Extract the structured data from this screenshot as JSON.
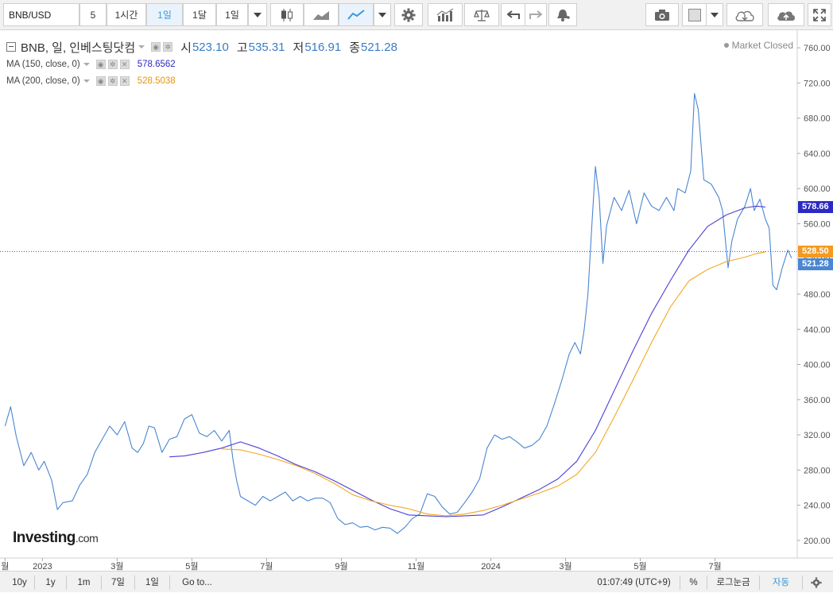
{
  "toolbar": {
    "symbol": "BNB/USD",
    "interval_buttons": [
      "5",
      "1시간",
      "1일",
      "1달",
      "1일"
    ],
    "active_interval": "1일"
  },
  "legend": {
    "title": "BNB, 일, 인베스팅닷컴",
    "open_label": "시",
    "open": "523.10",
    "high_label": "고",
    "high": "535.31",
    "low_label": "저",
    "low": "516.91",
    "close_label": "종",
    "close": "521.28",
    "ma150_label": "MA (150, close, 0)",
    "ma150_value": "578.6562",
    "ma200_label": "MA (200, close, 0)",
    "ma200_value": "528.5038",
    "market_status": "Market Closed"
  },
  "colors": {
    "price": "#4a86d1",
    "ma150": "#4b3fd6",
    "ma200": "#f5a623",
    "close_tag": "#4a86d1",
    "ma150_tag": "#2b28c4",
    "ma200_tag": "#f59a1f",
    "axis_text": "#555555"
  },
  "price_tags": {
    "ma150": "578.66",
    "ma200": "528.50",
    "close": "521.28"
  },
  "logo": {
    "main": "Investing",
    "suffix": ".com"
  },
  "chart_data": {
    "type": "line",
    "y_ticks": [
      200,
      240,
      280,
      320,
      360,
      400,
      440,
      480,
      520,
      560,
      600,
      640,
      680,
      720,
      760
    ],
    "ylim": [
      180,
      780
    ],
    "x_labels": [
      {
        "label": "월",
        "t": 0
      },
      {
        "label": "2023",
        "t": 1
      },
      {
        "label": "3월",
        "t": 3
      },
      {
        "label": "5월",
        "t": 5
      },
      {
        "label": "7월",
        "t": 7
      },
      {
        "label": "9월",
        "t": 9
      },
      {
        "label": "11월",
        "t": 11
      },
      {
        "label": "2024",
        "t": 13
      },
      {
        "label": "3월",
        "t": 15
      },
      {
        "label": "5월",
        "t": 17
      },
      {
        "label": "7월",
        "t": 19
      }
    ],
    "series": [
      {
        "key": "price",
        "values": [
          [
            0.0,
            330
          ],
          [
            0.15,
            352
          ],
          [
            0.3,
            318
          ],
          [
            0.5,
            285
          ],
          [
            0.7,
            300
          ],
          [
            0.9,
            280
          ],
          [
            1.05,
            290
          ],
          [
            1.25,
            268
          ],
          [
            1.4,
            235
          ],
          [
            1.55,
            243
          ],
          [
            1.8,
            245
          ],
          [
            2.0,
            263
          ],
          [
            2.2,
            275
          ],
          [
            2.4,
            300
          ],
          [
            2.6,
            315
          ],
          [
            2.8,
            330
          ],
          [
            3.0,
            320
          ],
          [
            3.2,
            335
          ],
          [
            3.4,
            305
          ],
          [
            3.55,
            300
          ],
          [
            3.7,
            310
          ],
          [
            3.85,
            330
          ],
          [
            4.0,
            328
          ],
          [
            4.2,
            300
          ],
          [
            4.4,
            315
          ],
          [
            4.6,
            318
          ],
          [
            4.8,
            338
          ],
          [
            5.0,
            343
          ],
          [
            5.2,
            322
          ],
          [
            5.4,
            318
          ],
          [
            5.6,
            325
          ],
          [
            5.8,
            313
          ],
          [
            6.0,
            325
          ],
          [
            6.1,
            292
          ],
          [
            6.2,
            268
          ],
          [
            6.3,
            250
          ],
          [
            6.5,
            245
          ],
          [
            6.7,
            240
          ],
          [
            6.9,
            250
          ],
          [
            7.1,
            245
          ],
          [
            7.3,
            250
          ],
          [
            7.5,
            255
          ],
          [
            7.7,
            245
          ],
          [
            7.9,
            250
          ],
          [
            8.1,
            245
          ],
          [
            8.3,
            248
          ],
          [
            8.5,
            248
          ],
          [
            8.7,
            243
          ],
          [
            8.9,
            225
          ],
          [
            9.1,
            218
          ],
          [
            9.3,
            220
          ],
          [
            9.5,
            215
          ],
          [
            9.7,
            216
          ],
          [
            9.9,
            212
          ],
          [
            10.1,
            215
          ],
          [
            10.3,
            214
          ],
          [
            10.5,
            208
          ],
          [
            10.7,
            215
          ],
          [
            10.9,
            225
          ],
          [
            11.1,
            230
          ],
          [
            11.3,
            253
          ],
          [
            11.5,
            250
          ],
          [
            11.7,
            238
          ],
          [
            11.9,
            230
          ],
          [
            12.1,
            232
          ],
          [
            12.3,
            243
          ],
          [
            12.5,
            255
          ],
          [
            12.7,
            270
          ],
          [
            12.9,
            305
          ],
          [
            13.1,
            320
          ],
          [
            13.3,
            315
          ],
          [
            13.5,
            318
          ],
          [
            13.7,
            312
          ],
          [
            13.9,
            305
          ],
          [
            14.1,
            308
          ],
          [
            14.3,
            315
          ],
          [
            14.5,
            330
          ],
          [
            14.7,
            355
          ],
          [
            14.9,
            382
          ],
          [
            15.1,
            412
          ],
          [
            15.25,
            425
          ],
          [
            15.4,
            412
          ],
          [
            15.5,
            440
          ],
          [
            15.6,
            480
          ],
          [
            15.7,
            555
          ],
          [
            15.8,
            625
          ],
          [
            15.9,
            590
          ],
          [
            16.0,
            515
          ],
          [
            16.1,
            558
          ],
          [
            16.3,
            590
          ],
          [
            16.5,
            575
          ],
          [
            16.7,
            598
          ],
          [
            16.9,
            560
          ],
          [
            17.1,
            595
          ],
          [
            17.3,
            580
          ],
          [
            17.5,
            575
          ],
          [
            17.7,
            590
          ],
          [
            17.9,
            575
          ],
          [
            18.0,
            600
          ],
          [
            18.2,
            595
          ],
          [
            18.35,
            620
          ],
          [
            18.45,
            708
          ],
          [
            18.55,
            690
          ],
          [
            18.7,
            610
          ],
          [
            18.9,
            605
          ],
          [
            19.1,
            590
          ],
          [
            19.2,
            575
          ],
          [
            19.35,
            510
          ],
          [
            19.45,
            540
          ],
          [
            19.6,
            565
          ],
          [
            19.8,
            580
          ],
          [
            19.95,
            600
          ],
          [
            20.05,
            575
          ],
          [
            20.2,
            588
          ],
          [
            20.35,
            565
          ],
          [
            20.45,
            555
          ],
          [
            20.55,
            490
          ],
          [
            20.65,
            485
          ],
          [
            20.8,
            510
          ],
          [
            20.95,
            530
          ],
          [
            21.05,
            521
          ]
        ]
      },
      {
        "key": "ma150",
        "values": [
          [
            4.4,
            295
          ],
          [
            4.8,
            296
          ],
          [
            5.3,
            300
          ],
          [
            5.8,
            305
          ],
          [
            6.3,
            312
          ],
          [
            6.8,
            305
          ],
          [
            7.3,
            296
          ],
          [
            7.8,
            286
          ],
          [
            8.3,
            278
          ],
          [
            8.8,
            268
          ],
          [
            9.3,
            257
          ],
          [
            9.8,
            246
          ],
          [
            10.3,
            236
          ],
          [
            10.8,
            229
          ],
          [
            11.3,
            228
          ],
          [
            11.8,
            227
          ],
          [
            12.3,
            228
          ],
          [
            12.8,
            229
          ],
          [
            13.3,
            238
          ],
          [
            13.8,
            248
          ],
          [
            14.3,
            258
          ],
          [
            14.8,
            270
          ],
          [
            15.3,
            290
          ],
          [
            15.8,
            325
          ],
          [
            16.3,
            370
          ],
          [
            16.8,
            415
          ],
          [
            17.3,
            458
          ],
          [
            17.8,
            495
          ],
          [
            18.3,
            530
          ],
          [
            18.8,
            557
          ],
          [
            19.3,
            570
          ],
          [
            19.8,
            578
          ],
          [
            20.1,
            580
          ],
          [
            20.35,
            579
          ]
        ]
      },
      {
        "key": "ma200",
        "values": [
          [
            5.8,
            304
          ],
          [
            6.3,
            303
          ],
          [
            6.8,
            298
          ],
          [
            7.3,
            292
          ],
          [
            7.8,
            285
          ],
          [
            8.3,
            276
          ],
          [
            8.8,
            265
          ],
          [
            9.3,
            252
          ],
          [
            9.8,
            245
          ],
          [
            10.3,
            240
          ],
          [
            10.8,
            236
          ],
          [
            11.3,
            230
          ],
          [
            11.8,
            228
          ],
          [
            12.3,
            230
          ],
          [
            12.8,
            234
          ],
          [
            13.3,
            240
          ],
          [
            13.8,
            247
          ],
          [
            14.3,
            254
          ],
          [
            14.8,
            262
          ],
          [
            15.3,
            275
          ],
          [
            15.8,
            300
          ],
          [
            16.3,
            340
          ],
          [
            16.8,
            382
          ],
          [
            17.3,
            425
          ],
          [
            17.8,
            465
          ],
          [
            18.3,
            495
          ],
          [
            18.8,
            508
          ],
          [
            19.3,
            517
          ],
          [
            19.8,
            522
          ],
          [
            20.1,
            526
          ],
          [
            20.35,
            528
          ]
        ]
      }
    ]
  },
  "bottom": {
    "ranges": [
      "10y",
      "1y",
      "1m",
      "7일",
      "1일"
    ],
    "goto": "Go to...",
    "time": "01:07:49 (UTC+9)",
    "percent": "%",
    "log": "로그눈금",
    "auto": "자동"
  }
}
